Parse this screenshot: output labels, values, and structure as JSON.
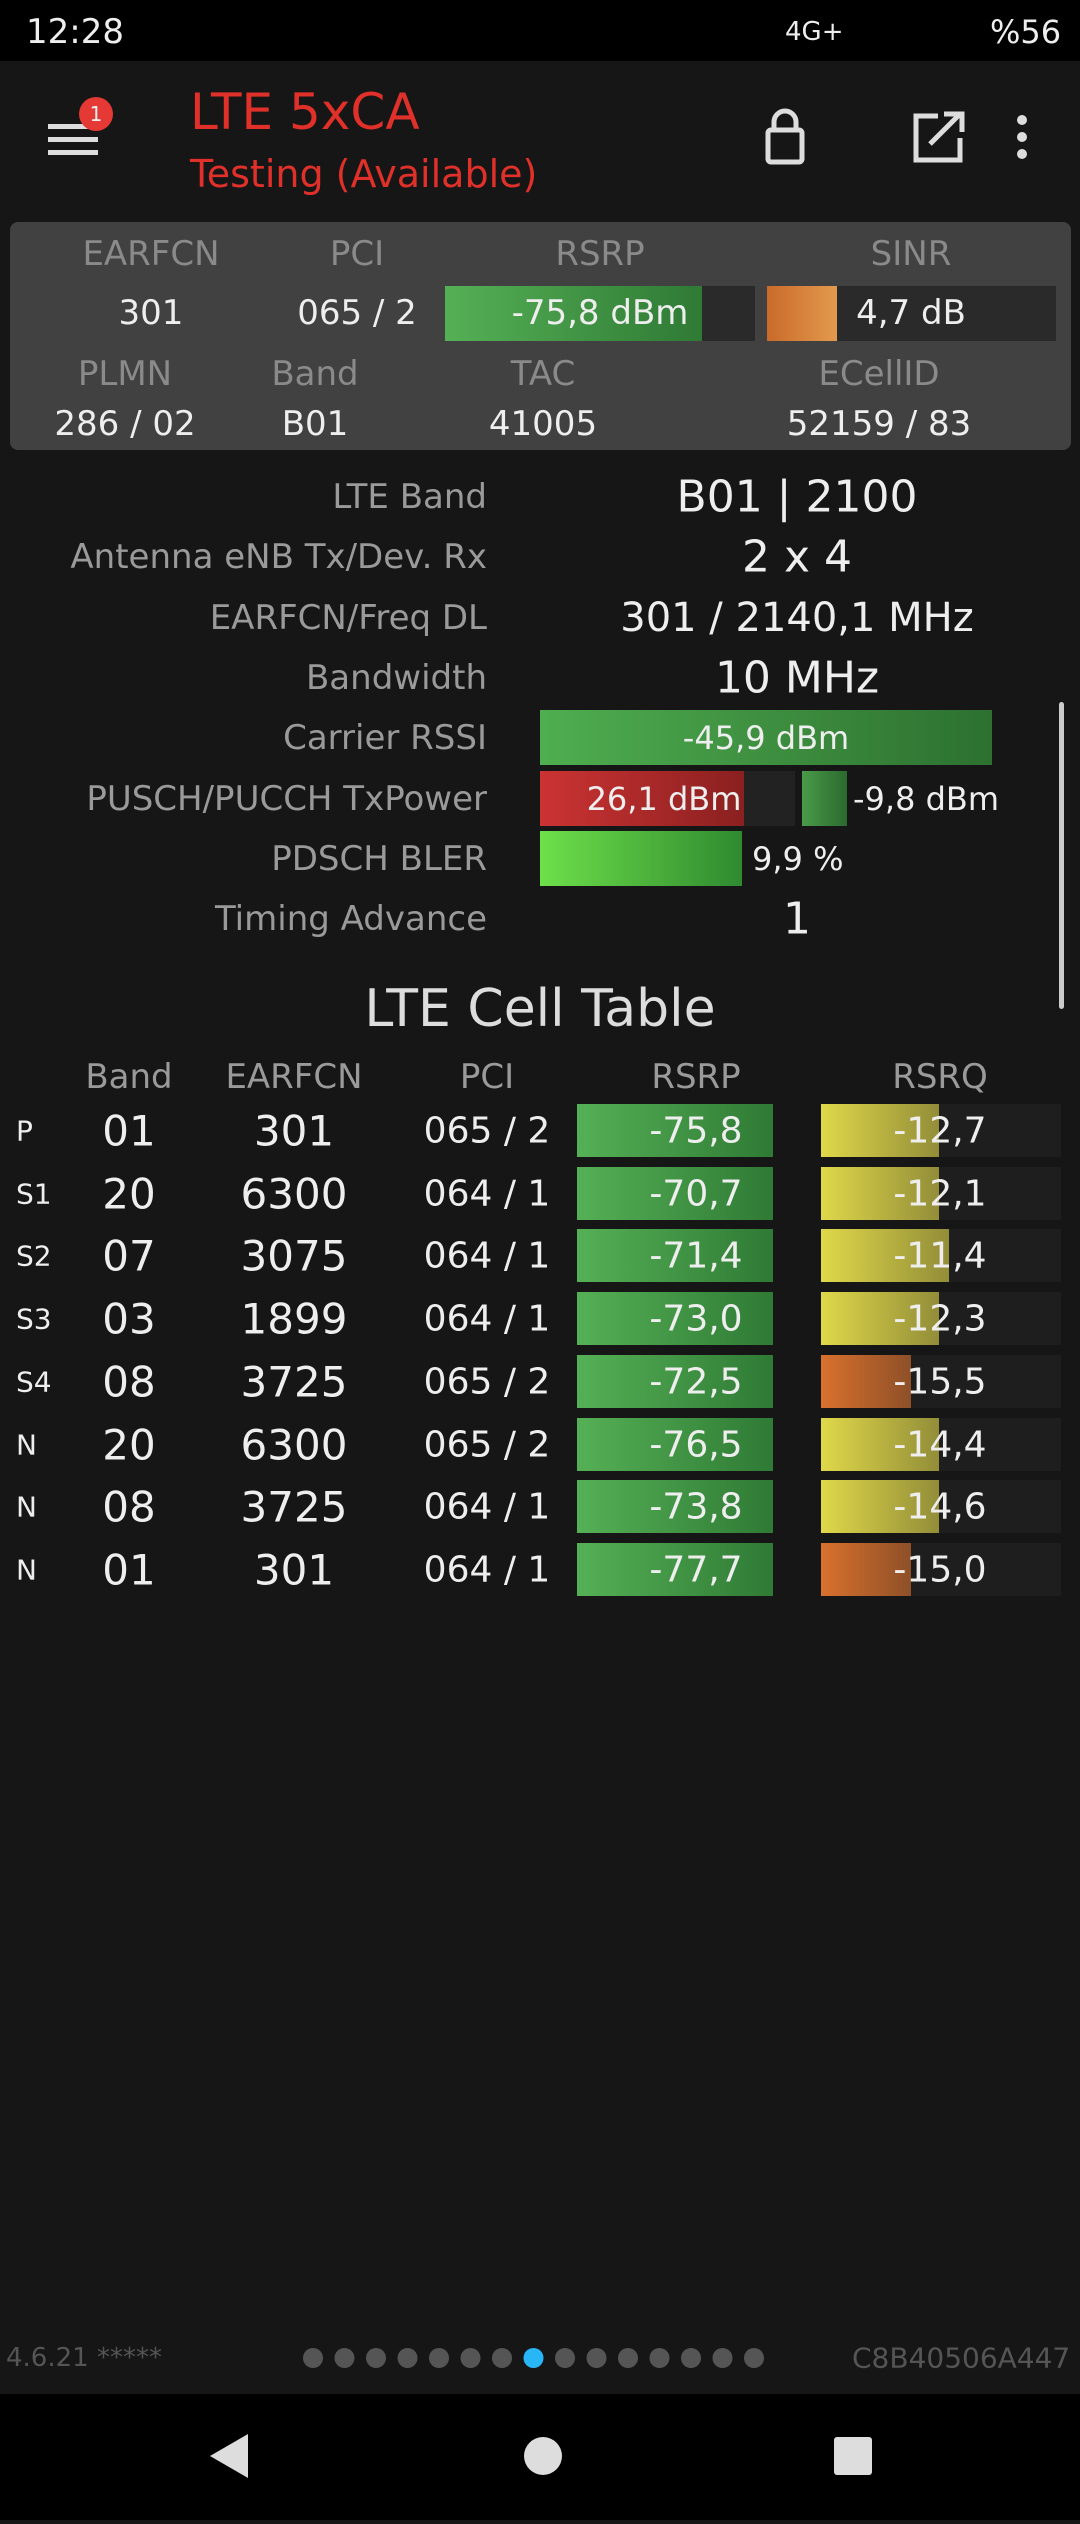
{
  "status": {
    "time": "12:28",
    "network": "4G+",
    "battery": "%56"
  },
  "header": {
    "badge": "1",
    "title": "LTE 5xCA",
    "subtitle": "Testing (Available)"
  },
  "summary": {
    "labels": [
      "EARFCN",
      "PCI",
      "RSRP",
      "SINR",
      "PLMN",
      "Band",
      "TAC",
      "ECellID"
    ],
    "values": [
      "301",
      "065 / 2",
      "-75,8 dBm",
      "4,7 dB",
      "286 / 02",
      "B01",
      "41005",
      "52159 / 83"
    ]
  },
  "details": [
    {
      "label": "LTE Band",
      "value": "B01 | 2100"
    },
    {
      "label": "Antenna eNB Tx/Dev. Rx",
      "value": "2 x 4"
    },
    {
      "label": "EARFCN/Freq DL",
      "value": "301 / 2140,1 MHz"
    },
    {
      "label": "Bandwidth",
      "value": "10 MHz"
    },
    {
      "label": "Carrier RSSI",
      "value": "-45,9 dBm"
    },
    {
      "label": "PUSCH/PUCCH TxPower",
      "value": "26,1 dBm",
      "value2": "-9,8 dBm"
    },
    {
      "label": "PDSCH BLER",
      "value": "9,9 %"
    },
    {
      "label": "Timing Advance",
      "value": "1"
    }
  ],
  "cell_table": {
    "title": "LTE Cell Table",
    "headers": [
      "Band",
      "EARFCN",
      "PCI",
      "RSRP",
      "RSRQ"
    ],
    "rows": [
      [
        "P",
        "01",
        "301",
        "065 / 2",
        "-75,8",
        "-12,7"
      ],
      [
        "S1",
        "20",
        "6300",
        "064 / 1",
        "-70,7",
        "-12,1"
      ],
      [
        "S2",
        "07",
        "3075",
        "064 / 1",
        "-71,4",
        "-11,4"
      ],
      [
        "S3",
        "03",
        "1899",
        "064 / 1",
        "-73,0",
        "-12,3"
      ],
      [
        "S4",
        "08",
        "3725",
        "065 / 2",
        "-72,5",
        "-15,5"
      ],
      [
        "N",
        "20",
        "6300",
        "065 / 2",
        "-76,5",
        "-14,4"
      ],
      [
        "N",
        "08",
        "3725",
        "064 / 1",
        "-73,8",
        "-14,6"
      ],
      [
        "N",
        "01",
        "301",
        "064 / 1",
        "-77,7",
        "-15,0"
      ]
    ]
  },
  "footer": {
    "version": "4.6.21 *****",
    "device_id": "C8B40506A447"
  }
}
